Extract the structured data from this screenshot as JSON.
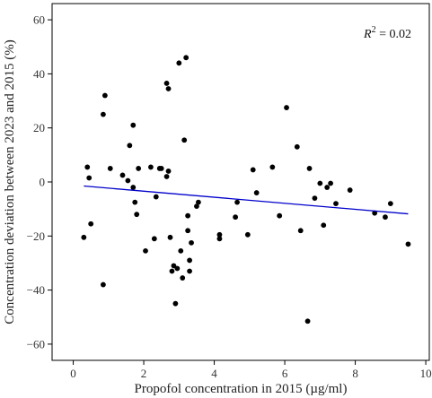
{
  "chart_data": {
    "type": "scatter",
    "xlabel": "Propofol concentration in 2015 (µg/ml)",
    "ylabel": "Concentration deviation between 2023 and 2015 (%)",
    "annotation": {
      "symbol": "R",
      "superscript": "2",
      "value": " = 0.02"
    },
    "xlim": [
      -0.6,
      10.1
    ],
    "ylim": [
      -66,
      66
    ],
    "xticks": [
      0,
      2,
      4,
      6,
      8,
      10
    ],
    "yticks": [
      -60,
      -40,
      -20,
      0,
      20,
      40,
      60
    ],
    "point_color": "#000000",
    "line_color": "#0000cc",
    "regression_line": {
      "x": [
        0.3,
        9.5
      ],
      "y": [
        -1.5,
        -11.8
      ]
    },
    "points": [
      [
        0.3,
        -20.5
      ],
      [
        0.4,
        5.5
      ],
      [
        0.45,
        1.5
      ],
      [
        0.5,
        -15.5
      ],
      [
        0.85,
        -38
      ],
      [
        0.85,
        25
      ],
      [
        0.9,
        32
      ],
      [
        1.05,
        5
      ],
      [
        1.4,
        2.5
      ],
      [
        1.55,
        0.5
      ],
      [
        1.6,
        13.5
      ],
      [
        1.7,
        -2
      ],
      [
        1.7,
        21
      ],
      [
        1.75,
        -7.5
      ],
      [
        1.8,
        -12
      ],
      [
        1.85,
        5
      ],
      [
        2.05,
        -25.5
      ],
      [
        2.2,
        5.5
      ],
      [
        2.3,
        -21
      ],
      [
        2.35,
        -5.5
      ],
      [
        2.45,
        5
      ],
      [
        2.5,
        5
      ],
      [
        2.65,
        2
      ],
      [
        2.65,
        36.5
      ],
      [
        2.7,
        34.5
      ],
      [
        2.7,
        4
      ],
      [
        2.75,
        -20.5
      ],
      [
        2.8,
        -33
      ],
      [
        2.85,
        -31
      ],
      [
        2.9,
        -45
      ],
      [
        2.95,
        -32
      ],
      [
        3.0,
        44
      ],
      [
        3.05,
        -25.5
      ],
      [
        3.1,
        -35.5
      ],
      [
        3.15,
        15.5
      ],
      [
        3.2,
        46
      ],
      [
        3.25,
        -12.5
      ],
      [
        3.25,
        -18
      ],
      [
        3.3,
        -29
      ],
      [
        3.3,
        -33
      ],
      [
        3.35,
        -22.5
      ],
      [
        3.5,
        -9
      ],
      [
        3.55,
        -7.5
      ],
      [
        4.15,
        -19.5
      ],
      [
        4.15,
        -21
      ],
      [
        4.6,
        -13
      ],
      [
        4.65,
        -7.5
      ],
      [
        4.95,
        -19.5
      ],
      [
        5.1,
        4.5
      ],
      [
        5.2,
        -4
      ],
      [
        5.65,
        5.5
      ],
      [
        5.85,
        -12.5
      ],
      [
        6.05,
        27.5
      ],
      [
        6.35,
        13
      ],
      [
        6.45,
        -18
      ],
      [
        6.65,
        -51.5
      ],
      [
        6.7,
        5
      ],
      [
        6.85,
        -6
      ],
      [
        7.0,
        -0.5
      ],
      [
        7.1,
        -16
      ],
      [
        7.2,
        -2
      ],
      [
        7.3,
        -0.5
      ],
      [
        7.45,
        -8
      ],
      [
        7.85,
        -3
      ],
      [
        8.55,
        -11.5
      ],
      [
        8.85,
        -13
      ],
      [
        9.0,
        -8
      ],
      [
        9.5,
        -23
      ]
    ]
  }
}
